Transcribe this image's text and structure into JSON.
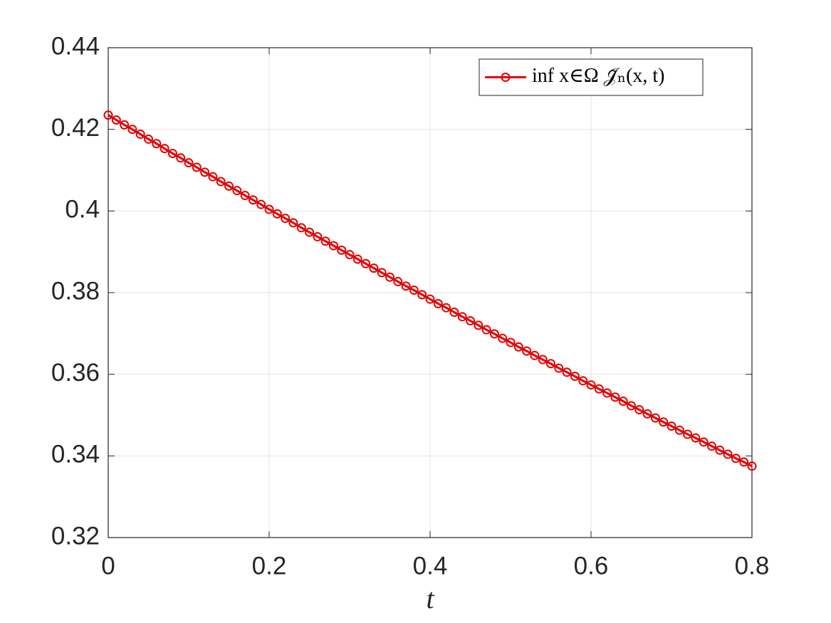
{
  "chart_data": {
    "type": "line",
    "xlabel": "t",
    "x": [
      0,
      0.01,
      0.02,
      0.03,
      0.04,
      0.05,
      0.06,
      0.07,
      0.08,
      0.09,
      0.1,
      0.11,
      0.12,
      0.13,
      0.14,
      0.15,
      0.16,
      0.17,
      0.18,
      0.19,
      0.2,
      0.21,
      0.22,
      0.23,
      0.24,
      0.25,
      0.26,
      0.27,
      0.28,
      0.29,
      0.3,
      0.31,
      0.32,
      0.33,
      0.34,
      0.35,
      0.36,
      0.37,
      0.38,
      0.39,
      0.4,
      0.41,
      0.42,
      0.43,
      0.44,
      0.45,
      0.46,
      0.47,
      0.48,
      0.49,
      0.5,
      0.51,
      0.52,
      0.53,
      0.54,
      0.55,
      0.56,
      0.57,
      0.58,
      0.59,
      0.6,
      0.61,
      0.62,
      0.63,
      0.64,
      0.65,
      0.66,
      0.67,
      0.68,
      0.69,
      0.7,
      0.71,
      0.72,
      0.73,
      0.74,
      0.75,
      0.76,
      0.77,
      0.78,
      0.79,
      0.8
    ],
    "series": [
      {
        "name": "inf x∈Ω 𝒥̃ₙ(x, t)",
        "color": "#e60000",
        "marker": "circle",
        "values": [
          0.4235,
          0.4223,
          0.4211,
          0.42,
          0.4188,
          0.4176,
          0.4165,
          0.4153,
          0.4141,
          0.413,
          0.4118,
          0.4107,
          0.4095,
          0.4084,
          0.4072,
          0.4061,
          0.405,
          0.4038,
          0.4027,
          0.4016,
          0.4004,
          0.3993,
          0.3982,
          0.3971,
          0.3959,
          0.3948,
          0.3937,
          0.3926,
          0.3915,
          0.3904,
          0.3893,
          0.3882,
          0.3871,
          0.386,
          0.3849,
          0.3838,
          0.3827,
          0.3816,
          0.3806,
          0.3795,
          0.3784,
          0.3773,
          0.3763,
          0.3752,
          0.3741,
          0.3731,
          0.372,
          0.3709,
          0.3699,
          0.3688,
          0.3678,
          0.3667,
          0.3657,
          0.3646,
          0.3636,
          0.3626,
          0.3615,
          0.3605,
          0.3595,
          0.3584,
          0.3574,
          0.3564,
          0.3554,
          0.3544,
          0.3534,
          0.3523,
          0.3513,
          0.3503,
          0.3493,
          0.3483,
          0.3473,
          0.3463,
          0.3453,
          0.3444,
          0.3434,
          0.3424,
          0.3414,
          0.3404,
          0.3394,
          0.3385,
          0.3375
        ]
      }
    ],
    "xlim": [
      0,
      0.8
    ],
    "xticks": [
      0,
      0.2,
      0.4,
      0.6,
      0.8
    ],
    "ylim": [
      0.32,
      0.44
    ],
    "yticks": [
      0.32,
      0.34,
      0.36,
      0.38,
      0.4,
      0.42,
      0.44
    ],
    "grid": true,
    "legend": "upper right"
  }
}
